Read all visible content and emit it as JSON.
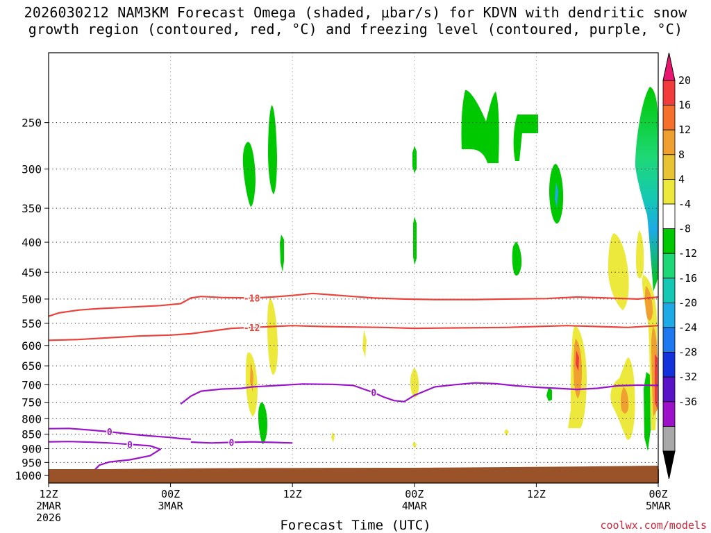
{
  "title_line1": "2026030212 NAM3KM Forecast Omega (shaded, μbar/s) for KDVN with dendritic snow",
  "title_line2": "growth region (contoured, red, °C) and freezing level (contoured, purple, °C)",
  "credit": "coolwx.com/models",
  "chart_data": {
    "type": "heatmap",
    "title": "2026030212 NAM3KM Forecast Omega (shaded, μbar/s) for KDVN with dendritic snow growth region (contoured, red, °C) and freezing level (contoured, purple, °C)",
    "xlabel": "Forecast Time (UTC)",
    "ylabel": "",
    "x_unit": "hours since 12Z 2MAR 2026",
    "xlim": [
      0,
      60
    ],
    "x_ticks": [
      {
        "x": 0,
        "label": [
          "12Z",
          "2MAR",
          "2026"
        ]
      },
      {
        "x": 12,
        "label": [
          "00Z",
          "3MAR"
        ]
      },
      {
        "x": 24,
        "label": [
          "12Z"
        ]
      },
      {
        "x": 36,
        "label": [
          "00Z",
          "4MAR"
        ]
      },
      {
        "x": 48,
        "label": [
          "12Z"
        ]
      },
      {
        "x": 60,
        "label": [
          "00Z",
          "5MAR"
        ]
      }
    ],
    "y_unit": "hPa",
    "ylim": [
      1030,
      190
    ],
    "y_ticks": [
      250,
      300,
      350,
      400,
      450,
      500,
      550,
      600,
      650,
      700,
      750,
      800,
      850,
      900,
      950,
      1000
    ],
    "grid": true,
    "colorbar": {
      "unit": "μbar/s",
      "labels": [
        20,
        16,
        12,
        8,
        4,
        -4,
        -8,
        -12,
        -16,
        -20,
        -24,
        -28,
        -32,
        -36
      ],
      "colors": [
        "#e8166e",
        "#f23c3c",
        "#f5702a",
        "#f0a030",
        "#e8c435",
        "#ece83c",
        "#ffffff",
        "#00c800",
        "#1ed878",
        "#14c8b4",
        "#1eaae6",
        "#1e78f0",
        "#1432dc",
        "#5a14c8",
        "#9b12c8",
        "#a8a8a8",
        "#000000"
      ]
    },
    "contours": {
      "red_temperature": [
        {
          "label": "-18",
          "points": [
            [
              0,
              535
            ],
            [
              1,
              528
            ],
            [
              3,
              522
            ],
            [
              5,
              519
            ],
            [
              8,
              516
            ],
            [
              11,
              513
            ],
            [
              13,
              509
            ],
            [
              14,
              498
            ],
            [
              15,
              495
            ],
            [
              17,
              497
            ],
            [
              20,
              498
            ],
            [
              22,
              496
            ],
            [
              24,
              493
            ],
            [
              26,
              489
            ],
            [
              28,
              492
            ],
            [
              30,
              495
            ],
            [
              32,
              498
            ],
            [
              35,
              500
            ],
            [
              38,
              501
            ],
            [
              42,
              501
            ],
            [
              45,
              500
            ],
            [
              49,
              499
            ],
            [
              52,
              496
            ],
            [
              55,
              498
            ],
            [
              58,
              500
            ],
            [
              60,
              496
            ]
          ]
        },
        {
          "label": "-12",
          "points": [
            [
              0,
              588
            ],
            [
              3,
              586
            ],
            [
              6,
              582
            ],
            [
              9,
              578
            ],
            [
              12,
              576
            ],
            [
              14,
              573
            ],
            [
              16,
              567
            ],
            [
              18,
              561
            ],
            [
              20,
              559
            ],
            [
              22,
              557
            ],
            [
              24,
              555
            ],
            [
              27,
              557
            ],
            [
              30,
              558
            ],
            [
              33,
              559
            ],
            [
              36,
              561
            ],
            [
              40,
              560
            ],
            [
              45,
              559
            ],
            [
              48,
              557
            ],
            [
              51,
              555
            ],
            [
              54,
              557
            ],
            [
              57,
              559
            ],
            [
              60,
              555
            ]
          ]
        }
      ],
      "purple_temperature": [
        {
          "label": "0",
          "points": [
            [
              13,
              755
            ],
            [
              14,
              732
            ],
            [
              15,
              718
            ],
            [
              17,
              712
            ],
            [
              19,
              710
            ],
            [
              20,
              706
            ],
            [
              22,
              703
            ],
            [
              25,
              698
            ],
            [
              28,
              699
            ],
            [
              30,
              702
            ],
            [
              31,
              712
            ],
            [
              32,
              722
            ],
            [
              33,
              735
            ],
            [
              34,
              745
            ],
            [
              35,
              748
            ],
            [
              36,
              730
            ],
            [
              37,
              718
            ],
            [
              38,
              706
            ],
            [
              40,
              700
            ],
            [
              42,
              695
            ],
            [
              44,
              697
            ],
            [
              46,
              703
            ],
            [
              48,
              707
            ],
            [
              50,
              710
            ],
            [
              52,
              713
            ],
            [
              54,
              710
            ],
            [
              56,
              703
            ],
            [
              58,
              701
            ],
            [
              60,
              702
            ]
          ]
        },
        {
          "label": "0",
          "points": [
            [
              0,
              832
            ],
            [
              2,
              831
            ],
            [
              4,
              836
            ],
            [
              6,
              842
            ],
            [
              8,
              850
            ],
            [
              10,
              856
            ],
            [
              12,
              861
            ],
            [
              13,
              865
            ],
            [
              14,
              867
            ]
          ]
        },
        {
          "label": "0",
          "points": [
            [
              0,
              876
            ],
            [
              2,
              875
            ],
            [
              4,
              877
            ],
            [
              6,
              880
            ],
            [
              8,
              885
            ],
            [
              10,
              890
            ],
            [
              11,
              902
            ],
            [
              10,
              925
            ],
            [
              8,
              940
            ],
            [
              6,
              948
            ],
            [
              5,
              960
            ],
            [
              4.5,
              980
            ]
          ]
        },
        {
          "label": "0",
          "points": [
            [
              14,
              877
            ],
            [
              16,
              880
            ],
            [
              18,
              878
            ],
            [
              20,
              876
            ],
            [
              22,
              878
            ],
            [
              24,
              880
            ]
          ]
        }
      ]
    }
  }
}
